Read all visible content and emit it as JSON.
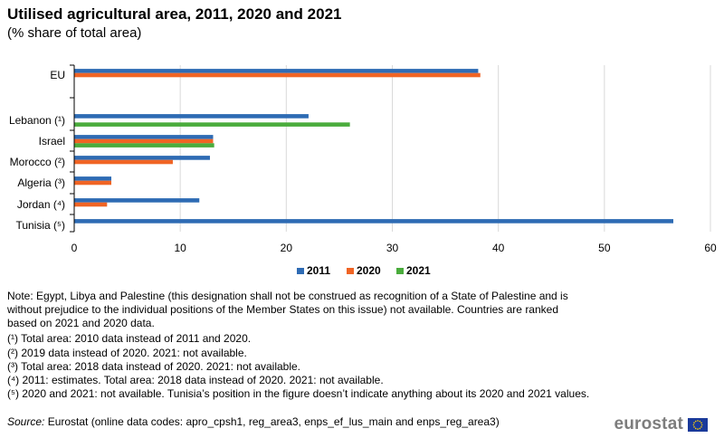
{
  "title": "Utilised agricultural area, 2011, 2020 and 2021",
  "subtitle": "(% share of total area)",
  "colors": {
    "2011": "#2e6bb4",
    "2020": "#f06424",
    "2021": "#4aac3c",
    "flag": "#1a3a9a",
    "star": "#ffd200"
  },
  "chart_data": {
    "type": "bar",
    "orientation": "horizontal",
    "categories": [
      "EU",
      "Lebanon (¹)",
      "Israel",
      "Morocco (²)",
      "Algeria (³)",
      "Jordan (⁴)",
      "Tunisia (⁵)"
    ],
    "series": [
      {
        "name": "2011",
        "values": [
          38.1,
          22.1,
          13.1,
          12.8,
          3.5,
          11.8,
          56.5
        ]
      },
      {
        "name": "2020",
        "values": [
          38.3,
          null,
          13.1,
          9.3,
          3.5,
          3.1,
          null
        ]
      },
      {
        "name": "2021",
        "values": [
          null,
          26.0,
          13.2,
          null,
          null,
          null,
          null
        ]
      }
    ],
    "xlim": [
      0,
      60
    ],
    "xticks": [
      0,
      10,
      20,
      30,
      40,
      50,
      60
    ],
    "grid": true,
    "legend": "bottom"
  },
  "notes": {
    "main": "Note: Egypt, Libya and Palestine (this designation shall not be construed as recognition of a State of Palestine and is without prejudice to the individual  positions of the Member States on this issue) not available. Countries are ranked based on 2021 and 2020 data.",
    "fn1": "(¹) Total area: 2010 data instead of 2011 and 2020.",
    "fn2": "(²) 2019 data instead of 2020. 2021: not available.",
    "fn3": "(³) Total area: 2018 data instead of 2020. 2021: not available.",
    "fn4": "(⁴) 2011: estimates. Total area: 2018 data instead of 2020. 2021: not available.",
    "fn5": "(⁵) 2020 and 2021: not available. Tunisia’s position in the figure doesn’t indicate anything about its 2020 and 2021 values.",
    "source_label": "Source:",
    "source_text": " Eurostat (online data codes: apro_cpsh1, reg_area3, enps_ef_lus_main  and enps_reg_area3)"
  },
  "logo_text": "eurostat"
}
